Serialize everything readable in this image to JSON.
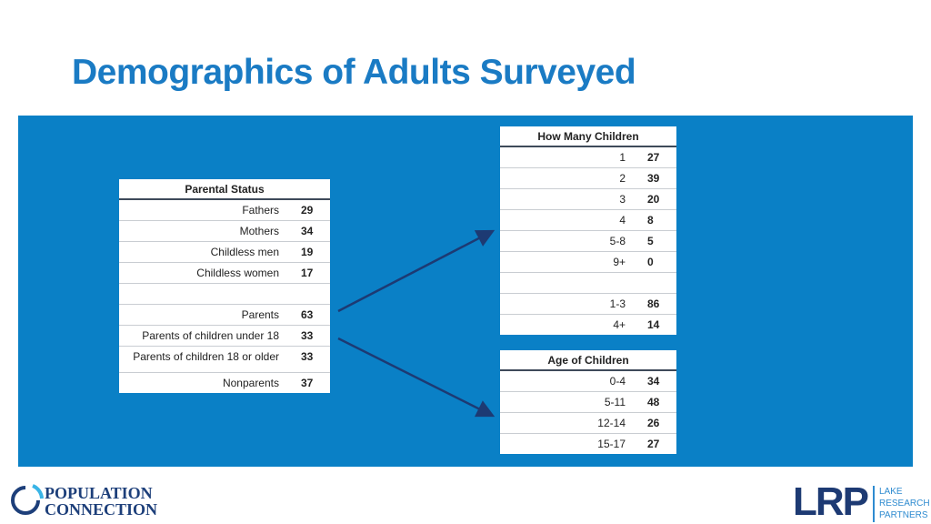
{
  "title": "Demographics of Adults Surveyed",
  "parental_status": {
    "header": "Parental Status",
    "rows": [
      {
        "label": "Fathers",
        "value": "29"
      },
      {
        "label": "Mothers",
        "value": "34"
      },
      {
        "label": "Childless men",
        "value": "19"
      },
      {
        "label": "Childless women",
        "value": "17"
      },
      {
        "label": "",
        "value": ""
      },
      {
        "label": "Parents",
        "value": "63"
      },
      {
        "label": "Parents of children under 18",
        "value": "33"
      },
      {
        "label": "Parents of children 18 or older",
        "value": "33"
      },
      {
        "label": "Nonparents",
        "value": "37"
      }
    ]
  },
  "how_many_children": {
    "header": "How Many Children",
    "rows": [
      {
        "label": "1",
        "value": "27"
      },
      {
        "label": "2",
        "value": "39"
      },
      {
        "label": "3",
        "value": "20"
      },
      {
        "label": "4",
        "value": "8"
      },
      {
        "label": "5-8",
        "value": "5"
      },
      {
        "label": "9+",
        "value": "0"
      },
      {
        "label": "",
        "value": ""
      },
      {
        "label": "1-3",
        "value": "86"
      },
      {
        "label": "4+",
        "value": "14"
      }
    ]
  },
  "age_of_children": {
    "header": "Age of Children",
    "rows": [
      {
        "label": "0-4",
        "value": "34"
      },
      {
        "label": "5-11",
        "value": "48"
      },
      {
        "label": "12-14",
        "value": "26"
      },
      {
        "label": "15-17",
        "value": "27"
      }
    ]
  },
  "logos": {
    "left_line1": "POPULATION",
    "left_line2": "CONNECTION",
    "right_mark": "LRP",
    "right_line1": "LAKE",
    "right_line2": "RESEARCH",
    "right_line3": "PARTNERS"
  },
  "colors": {
    "title": "#1a7bc4",
    "panel": "#0a80c6",
    "arrow": "#1d3a73"
  }
}
